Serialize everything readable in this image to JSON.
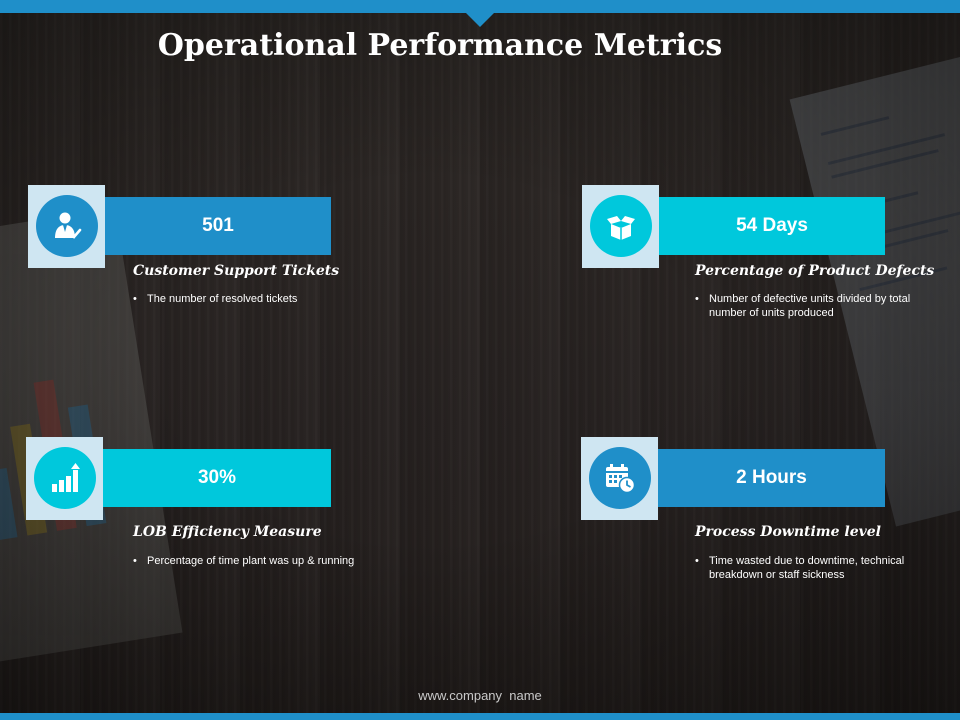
{
  "slide": {
    "title": "Operational Performance Metrics",
    "footer": "www.company  name"
  },
  "colors": {
    "accent_blue": "#1f8fc9",
    "accent_cyan": "#00c8dc",
    "icon_box_tint": "#cfe6f2"
  },
  "metrics": [
    {
      "value": "501",
      "title": "Customer Support Tickets",
      "description": "The number of resolved tickets",
      "icon": "support-agent-icon",
      "color": "#1f8fc9"
    },
    {
      "value": "54 Days",
      "title": "Percentage of Product Defects",
      "description": "Number of defective units divided by total number of units produced",
      "icon": "open-box-icon",
      "color": "#00c8dc"
    },
    {
      "value": "30%",
      "title": "LOB Efficiency Measure",
      "description": "Percentage of time plant was up & running",
      "icon": "growth-chart-icon",
      "color": "#00c8dc"
    },
    {
      "value": "2 Hours",
      "title": "Process Downtime  level",
      "description": "Time wasted due to downtime, technical breakdown or staff sickness",
      "icon": "calendar-clock-icon",
      "color": "#1f8fc9"
    }
  ]
}
